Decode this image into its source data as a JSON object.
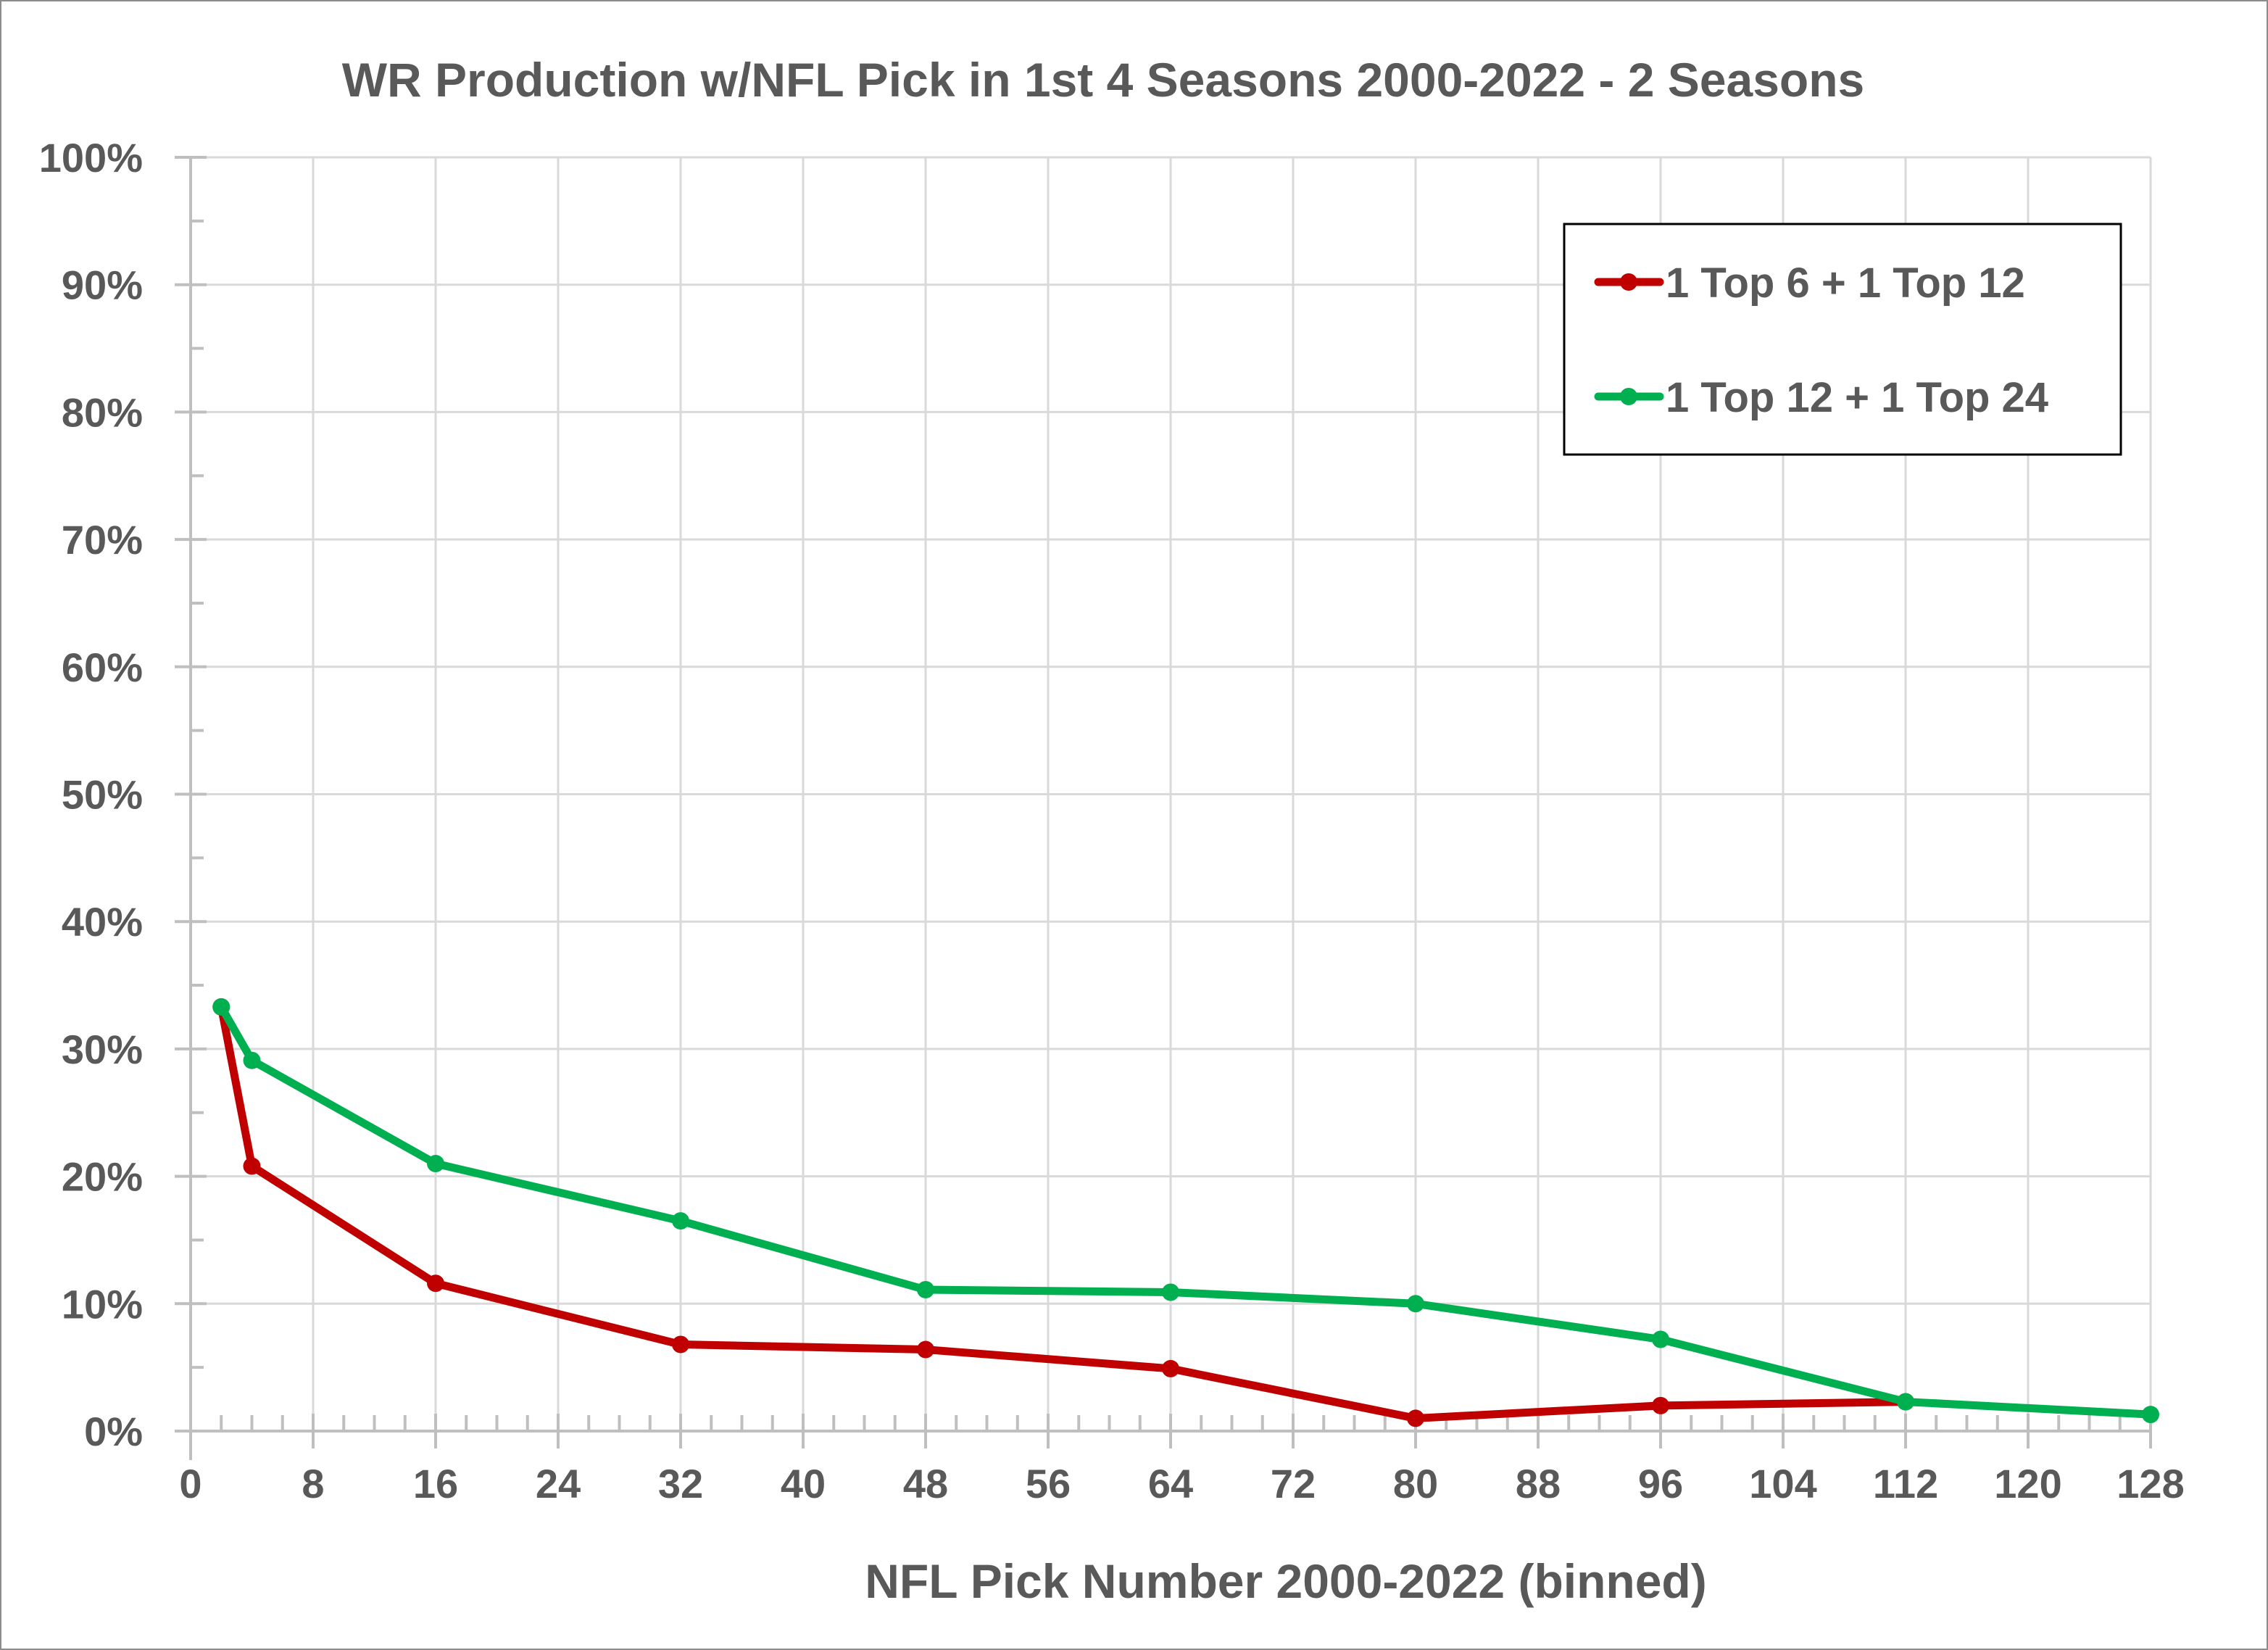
{
  "chart_data": {
    "type": "line",
    "title": "WR Production w/NFL Pick in 1st 4 Seasons 2000-2022 - 2 Seasons",
    "xlabel": "NFL Pick Number 2000-2022 (binned)",
    "ylabel": "",
    "xlim": [
      0,
      128
    ],
    "ylim": [
      0,
      100
    ],
    "x_ticks": [
      0,
      8,
      16,
      24,
      32,
      40,
      48,
      56,
      64,
      72,
      80,
      88,
      96,
      104,
      112,
      120,
      128
    ],
    "x_tick_labels": [
      "0",
      "8",
      "16",
      "24",
      "32",
      "40",
      "48",
      "56",
      "64",
      "72",
      "80",
      "88",
      "96",
      "104",
      "112",
      "120",
      "128"
    ],
    "x_minor_step": 2,
    "y_ticks": [
      0,
      10,
      20,
      30,
      40,
      50,
      60,
      70,
      80,
      90,
      100
    ],
    "y_tick_labels": [
      "0%",
      "10%",
      "20%",
      "30%",
      "40%",
      "50%",
      "60%",
      "70%",
      "80%",
      "90%",
      "100%"
    ],
    "y_minor_step": 5,
    "grid": true,
    "legend_position": "top-right",
    "series": [
      {
        "name": "1 Top 6 + 1 Top 12",
        "color": "#c00000",
        "x": [
          2,
          4,
          16,
          32,
          48,
          64,
          80,
          96,
          112
        ],
        "values": [
          33.3,
          20.8,
          11.6,
          6.8,
          6.4,
          4.9,
          1.0,
          2.0,
          2.3
        ]
      },
      {
        "name": "1 Top 12 + 1 Top 24",
        "color": "#00b050",
        "x": [
          2,
          4,
          16,
          32,
          48,
          64,
          80,
          96,
          112,
          128
        ],
        "values": [
          33.3,
          29.1,
          21.0,
          16.5,
          11.1,
          10.9,
          10.0,
          7.2,
          2.3,
          1.3
        ]
      }
    ]
  }
}
